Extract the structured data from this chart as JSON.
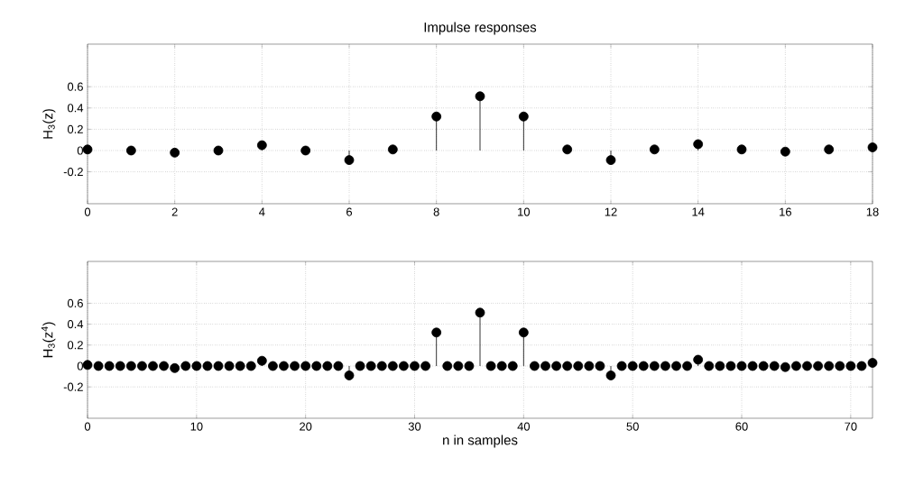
{
  "chart_data": [
    {
      "type": "lollipop",
      "title": "Impulse responses",
      "ylabel": "H$_{3}$(z)",
      "color": "#000000",
      "marker": "circle",
      "grid": true,
      "x": [
        0,
        1,
        2,
        3,
        4,
        5,
        6,
        7,
        8,
        9,
        10,
        11,
        12,
        13,
        14,
        15,
        16,
        17,
        18
      ],
      "values": [
        0.01,
        0,
        -0.02,
        0,
        0.05,
        0,
        -0.09,
        0.01,
        0.32,
        0.51,
        0.32,
        0.01,
        -0.09,
        0.01,
        0.06,
        0.01,
        -0.01,
        0.01,
        0.03
      ],
      "xlim": [
        0,
        18
      ],
      "ylim": [
        -0.5,
        1.0
      ],
      "xticks": [
        0,
        2,
        4,
        6,
        8,
        10,
        12,
        14,
        16,
        18
      ],
      "yticks": [
        -0.2,
        0,
        0.2,
        0.4,
        0.6
      ]
    },
    {
      "type": "lollipop",
      "xlabel": "n in samples",
      "ylabel": "H$_{3}$(z$^{4}$)",
      "color": "#000000",
      "marker": "circle",
      "grid": true,
      "x": [
        0,
        1,
        2,
        3,
        4,
        5,
        6,
        7,
        8,
        9,
        10,
        11,
        12,
        13,
        14,
        15,
        16,
        17,
        18,
        19,
        20,
        21,
        22,
        23,
        24,
        25,
        26,
        27,
        28,
        29,
        30,
        31,
        32,
        33,
        34,
        35,
        36,
        37,
        38,
        39,
        40,
        41,
        42,
        43,
        44,
        45,
        46,
        47,
        48,
        49,
        50,
        51,
        52,
        53,
        54,
        55,
        56,
        57,
        58,
        59,
        60,
        61,
        62,
        63,
        64,
        65,
        66,
        67,
        68,
        69,
        70,
        71,
        72
      ],
      "values": [
        0.01,
        0,
        0,
        0,
        0,
        0,
        0,
        0,
        -0.02,
        0,
        0,
        0,
        0,
        0,
        0,
        0,
        0.05,
        0,
        0,
        0,
        0,
        0,
        0,
        0,
        -0.09,
        0,
        0,
        0,
        0,
        0,
        0,
        0,
        0.32,
        0,
        0,
        0,
        0.51,
        0,
        0,
        0,
        0.32,
        0,
        0,
        0,
        0,
        0,
        0,
        0,
        -0.09,
        0,
        0,
        0,
        0,
        0,
        0,
        0,
        0.06,
        0,
        0,
        0,
        0,
        0,
        0,
        0,
        -0.01,
        0,
        0,
        0,
        0,
        0,
        0,
        0,
        0.03
      ],
      "xlim": [
        0,
        72
      ],
      "ylim": [
        -0.5,
        1.0
      ],
      "xticks": [
        0,
        10,
        20,
        30,
        40,
        50,
        60,
        70
      ],
      "yticks": [
        -0.2,
        0,
        0.2,
        0.4,
        0.6
      ]
    }
  ]
}
